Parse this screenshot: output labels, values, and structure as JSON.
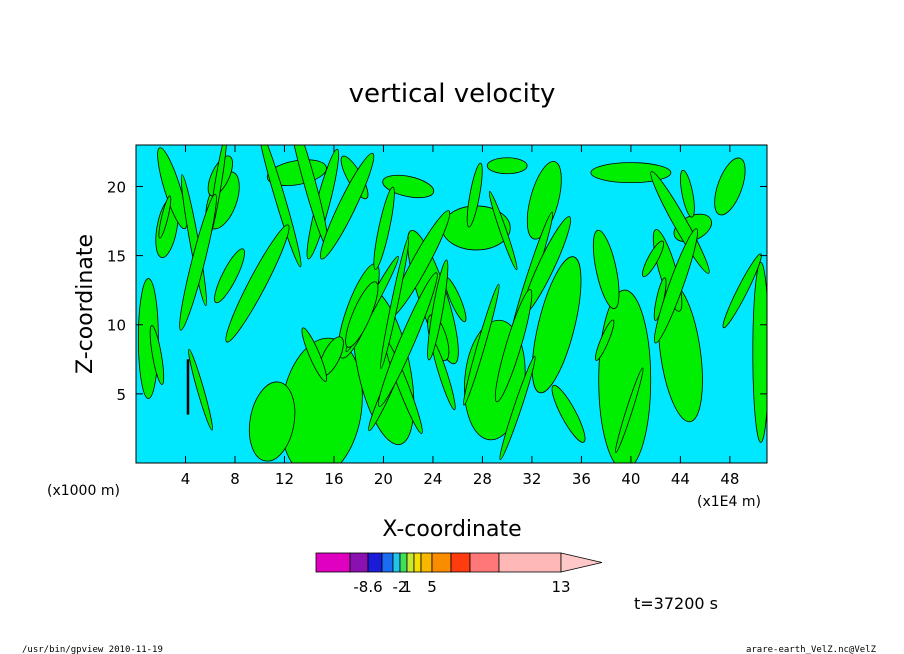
{
  "chart_data": {
    "type": "heatmap",
    "title": "vertical velocity",
    "xlabel": "X-coordinate",
    "ylabel": "Z-coordinate",
    "x_unit_left": "(x1000 m)",
    "x_unit_right": "(x1E4 m)",
    "xlim": [
      0,
      51
    ],
    "ylim": [
      0,
      23
    ],
    "xticks": [
      4,
      8,
      12,
      16,
      20,
      24,
      28,
      32,
      36,
      40,
      44,
      48
    ],
    "yticks": [
      5,
      10,
      15,
      20
    ],
    "background_color": "#00e8ff",
    "positive_color": "#00ee00",
    "contour_color": "#000000",
    "colorbar": {
      "colors": [
        "#e000c0",
        "#8a10b0",
        "#1c1cd8",
        "#1a6cf2",
        "#1fc6e8",
        "#3ee05a",
        "#c8e830",
        "#f6e000",
        "#f8b800",
        "#fa8c00",
        "#ff3b10",
        "#ff7878",
        "#ffb8b8",
        "#ffc8c8"
      ],
      "labels": [
        {
          "text": "-8.6",
          "after_segment": 1
        },
        {
          "text": "-2",
          "after_segment": 4
        },
        {
          "text": "1",
          "after_segment": 5
        },
        {
          "text": "5",
          "after_segment": 8
        },
        {
          "text": "13",
          "after_segment": 12
        }
      ]
    },
    "time_label": "t=37200 s",
    "footer_left": "/usr/bin/gpview   2010-11-19",
    "footer_right": "arare-earth_VelZ.nc@VelZ"
  }
}
